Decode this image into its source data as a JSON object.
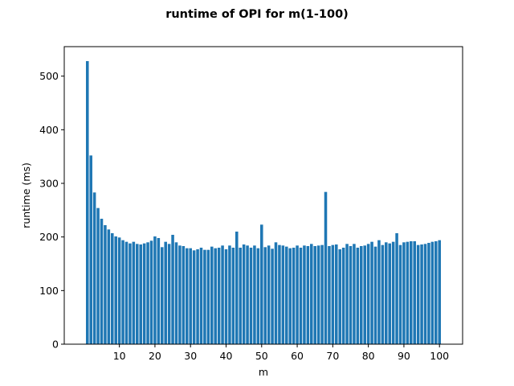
{
  "chart_data": {
    "type": "bar",
    "title": "runtime of OPI for m(1-100)",
    "xlabel": "m",
    "ylabel": "runtime (ms)",
    "xlim": [
      -5.5,
      106.5
    ],
    "ylim": [
      0,
      555
    ],
    "xticks": [
      10,
      20,
      30,
      40,
      50,
      60,
      70,
      80,
      90,
      100
    ],
    "yticks": [
      0,
      100,
      200,
      300,
      400,
      500
    ],
    "grid": false,
    "legend": "none",
    "bar_color": "#1f77b4",
    "x": [
      1,
      2,
      3,
      4,
      5,
      6,
      7,
      8,
      9,
      10,
      11,
      12,
      13,
      14,
      15,
      16,
      17,
      18,
      19,
      20,
      21,
      22,
      23,
      24,
      25,
      26,
      27,
      28,
      29,
      30,
      31,
      32,
      33,
      34,
      35,
      36,
      37,
      38,
      39,
      40,
      41,
      42,
      43,
      44,
      45,
      46,
      47,
      48,
      49,
      50,
      51,
      52,
      53,
      54,
      55,
      56,
      57,
      58,
      59,
      60,
      61,
      62,
      63,
      64,
      65,
      66,
      67,
      68,
      69,
      70,
      71,
      72,
      73,
      74,
      75,
      76,
      77,
      78,
      79,
      80,
      81,
      82,
      83,
      84,
      85,
      86,
      87,
      88,
      89,
      90,
      91,
      92,
      93,
      94,
      95,
      96,
      97,
      98,
      99,
      100
    ],
    "values": [
      528,
      352,
      283,
      254,
      234,
      222,
      214,
      207,
      201,
      199,
      194,
      191,
      188,
      191,
      187,
      186,
      188,
      190,
      193,
      201,
      198,
      181,
      191,
      187,
      204,
      190,
      184,
      183,
      179,
      179,
      175,
      177,
      180,
      176,
      176,
      182,
      179,
      180,
      184,
      177,
      184,
      180,
      210,
      180,
      186,
      184,
      180,
      184,
      179,
      223,
      181,
      184,
      178,
      190,
      185,
      184,
      182,
      179,
      180,
      184,
      180,
      184,
      183,
      187,
      183,
      184,
      185,
      284,
      183,
      185,
      186,
      177,
      180,
      187,
      183,
      187,
      180,
      183,
      184,
      187,
      191,
      182,
      194,
      185,
      190,
      188,
      191,
      207,
      185,
      190,
      191,
      192,
      192,
      185,
      186,
      187,
      189,
      191,
      192,
      194
    ]
  }
}
